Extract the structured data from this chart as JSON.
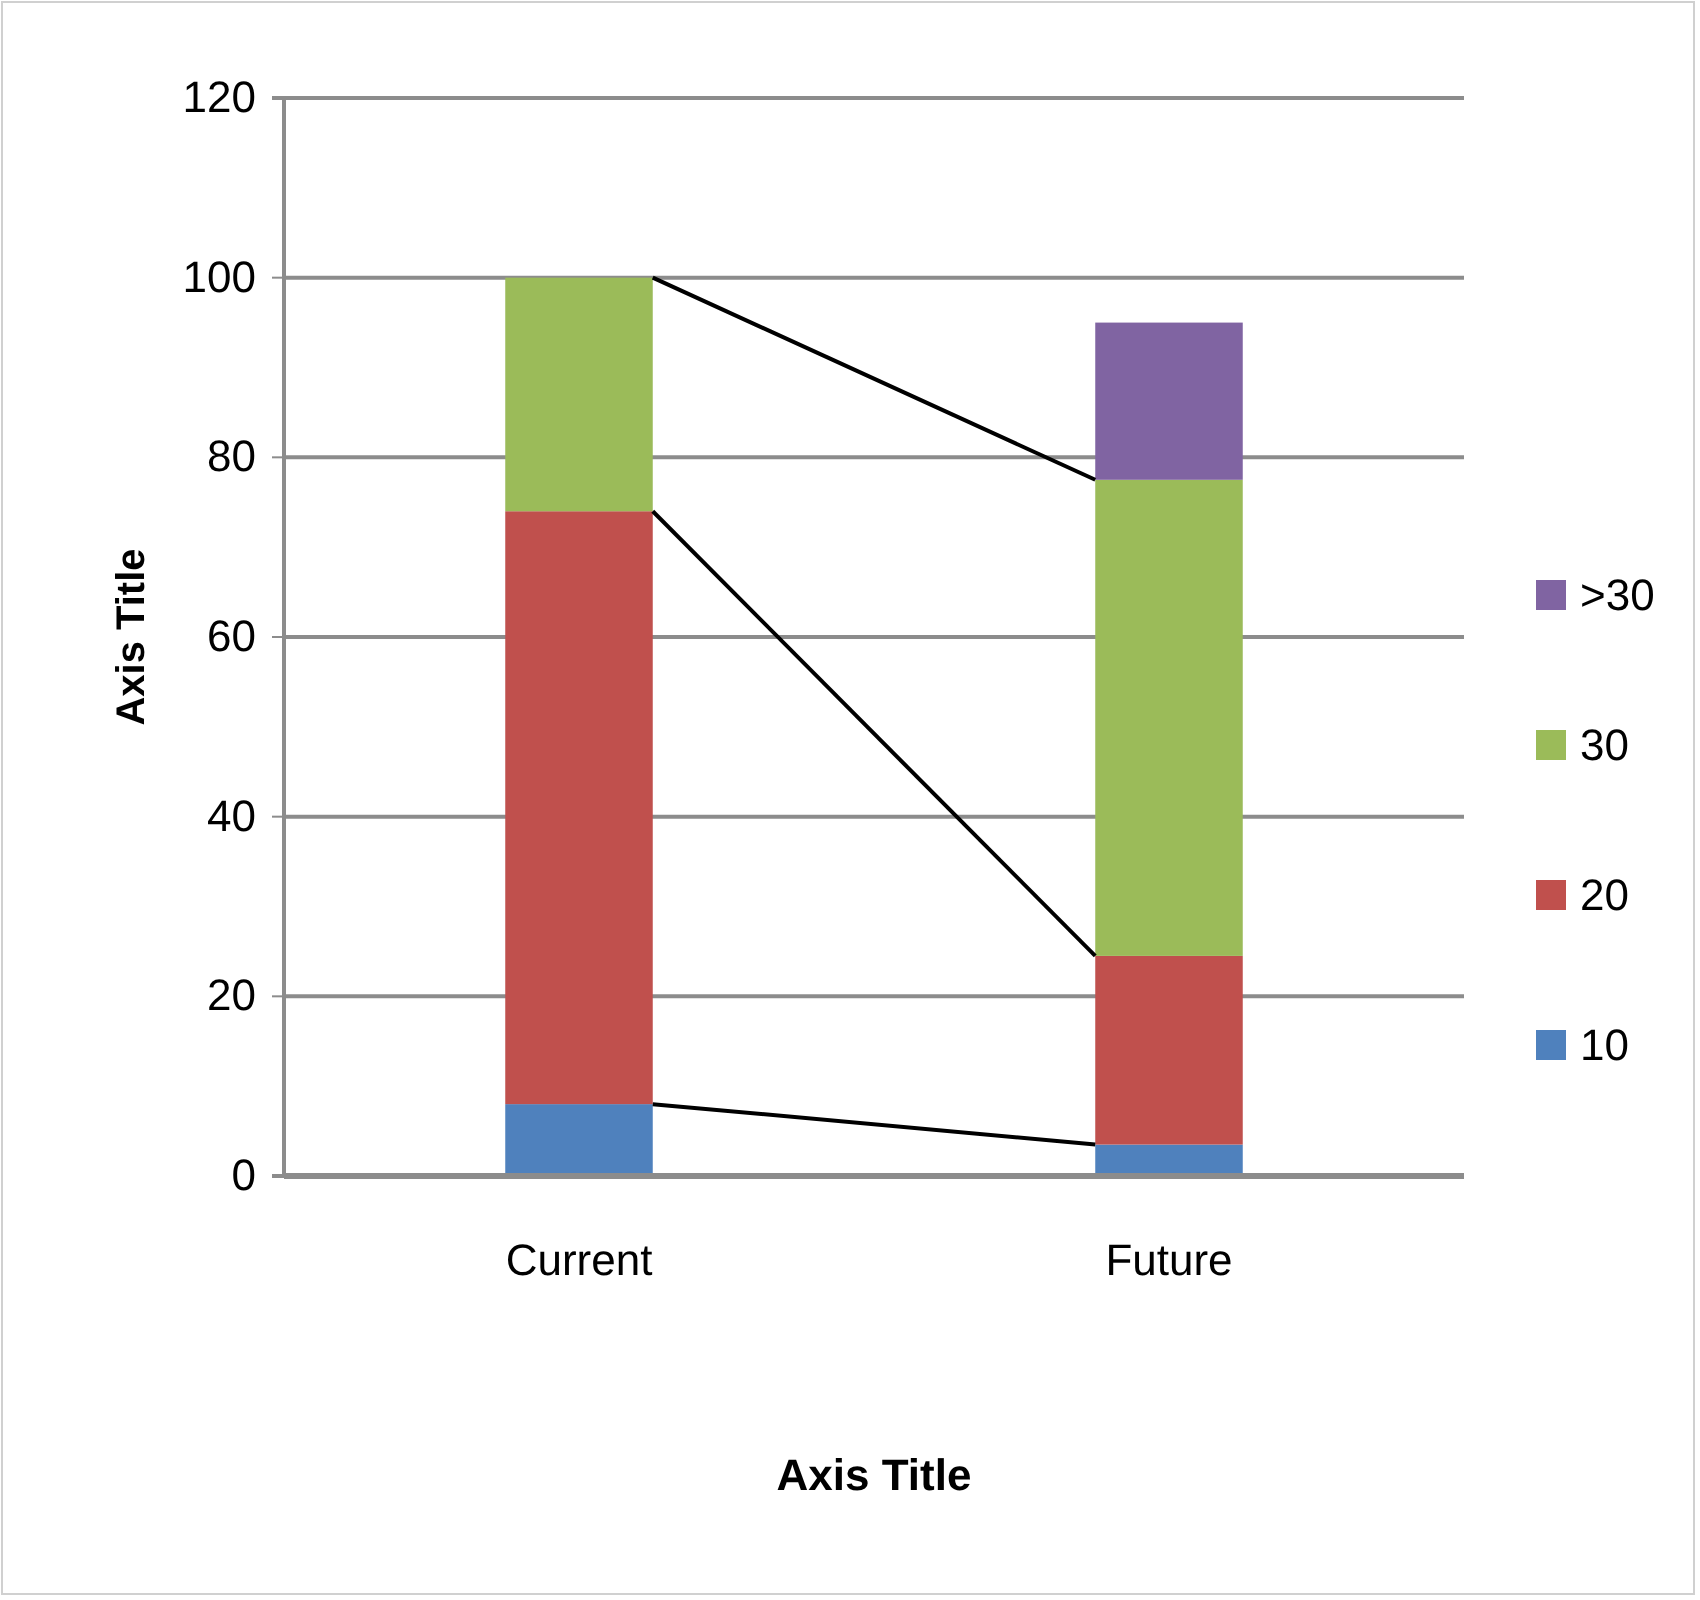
{
  "chart_data": {
    "type": "bar",
    "stacked": true,
    "xlabel": "Axis Title",
    "ylabel": "Axis Title",
    "categories": [
      "Current",
      "Future"
    ],
    "series": [
      {
        "name": "10",
        "color": "#4f81bd",
        "values": [
          8,
          3.5
        ]
      },
      {
        "name": "20",
        "color": "#c0504d",
        "values": [
          66,
          21
        ]
      },
      {
        "name": "30",
        "color": "#9bbb59",
        "values": [
          26,
          53
        ]
      },
      {
        "name": ">30",
        "color": "#8064a2",
        "values": [
          null,
          17.5
        ]
      }
    ],
    "ylim": [
      0,
      120
    ],
    "yticks": [
      0,
      20,
      40,
      60,
      80,
      100,
      120
    ],
    "grid": "y",
    "legend": "right"
  }
}
